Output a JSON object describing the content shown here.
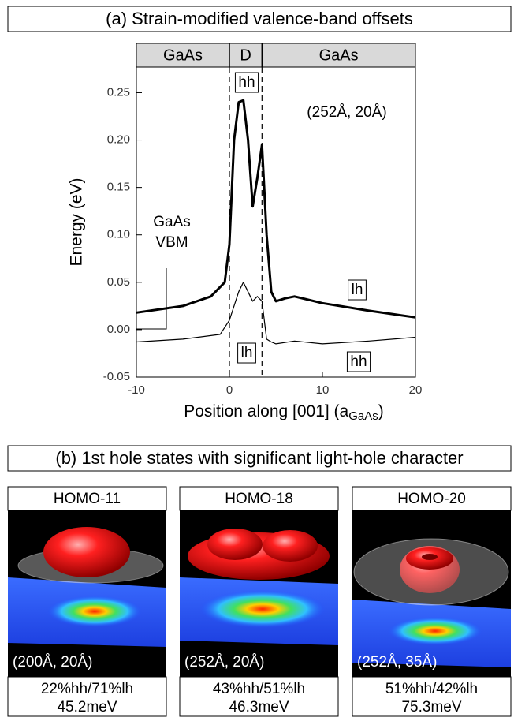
{
  "chart_data": {
    "type": "line",
    "title": "(a) Strain-modified valence-band offsets",
    "ylabel": "Energy (eV)",
    "xlabel": {
      "text": "Position along [001] (a",
      "subscript": "GaAs",
      "suffix": ")"
    },
    "xlim": [
      -10,
      20
    ],
    "xticks": [
      -10,
      0,
      10,
      20
    ],
    "ylim": [
      -0.05,
      0.277
    ],
    "yticks": [
      -0.05,
      {
        "value": 0,
        "label": "0.00"
      },
      0.05,
      {
        "value": 0.1,
        "label": "0.10"
      },
      0.15,
      {
        "value": 0.2,
        "label": "0.20"
      },
      0.25
    ],
    "regions": [
      {
        "label": "GaAs",
        "from": -10,
        "to": 0
      },
      {
        "label": "D",
        "from": 0,
        "to": 3.5
      },
      {
        "label": "GaAs",
        "from": 3.5,
        "to": 20
      }
    ],
    "series": [
      {
        "color": "#000000",
        "width": 3,
        "x": [
          -10,
          -5,
          -2,
          -0.5,
          0,
          0.5,
          1,
          1.5,
          2,
          2.5,
          3,
          3.5,
          4,
          4.5,
          5,
          6,
          7,
          10,
          15,
          20
        ],
        "values": [
          0.018,
          0.025,
          0.035,
          0.05,
          0.09,
          0.2,
          0.24,
          0.242,
          0.2,
          0.13,
          0.16,
          0.195,
          0.1,
          0.04,
          0.03,
          0.033,
          0.035,
          0.028,
          0.02,
          0.013
        ]
      },
      {
        "color": "#000000",
        "width": 1.2,
        "x": [
          -10,
          -5,
          -1,
          0,
          1,
          1.5,
          2,
          2.5,
          3,
          3.5,
          4,
          4.5,
          5,
          7,
          10,
          15,
          20
        ],
        "values": [
          -0.013,
          -0.01,
          -0.005,
          0.01,
          0.04,
          0.05,
          0.04,
          0.03,
          0.035,
          0.03,
          -0.01,
          -0.013,
          -0.015,
          -0.012,
          -0.015,
          -0.012,
          -0.008
        ]
      }
    ],
    "annotations": [
      {
        "lines": [
          "hh"
        ],
        "boxed": true
      },
      {
        "lines": [
          "(252Å, 20Å)"
        ],
        "boxed": false
      },
      {
        "lines": [
          "GaAs",
          "VBM"
        ],
        "boxed": false
      },
      {
        "lines": [
          "lh"
        ],
        "boxed": true
      },
      {
        "lines": [
          "lh"
        ],
        "boxed": true
      },
      {
        "lines": [
          "hh"
        ],
        "boxed": true
      }
    ]
  },
  "panel_b": {
    "title": "(b) 1st hole states with significant light-hole character",
    "states": [
      {
        "label": "HOMO-11",
        "params": "(200Å, 20Å)",
        "character": "22%hh/71%lh",
        "energy": "45.2meV"
      },
      {
        "label": "HOMO-18",
        "params": "(252Å, 20Å)",
        "character": "43%hh/51%lh",
        "energy": "46.3meV"
      },
      {
        "label": "HOMO-20",
        "params": "(252Å, 35Å)",
        "character": "51%hh/42%lh",
        "energy": "75.3meV"
      }
    ]
  }
}
